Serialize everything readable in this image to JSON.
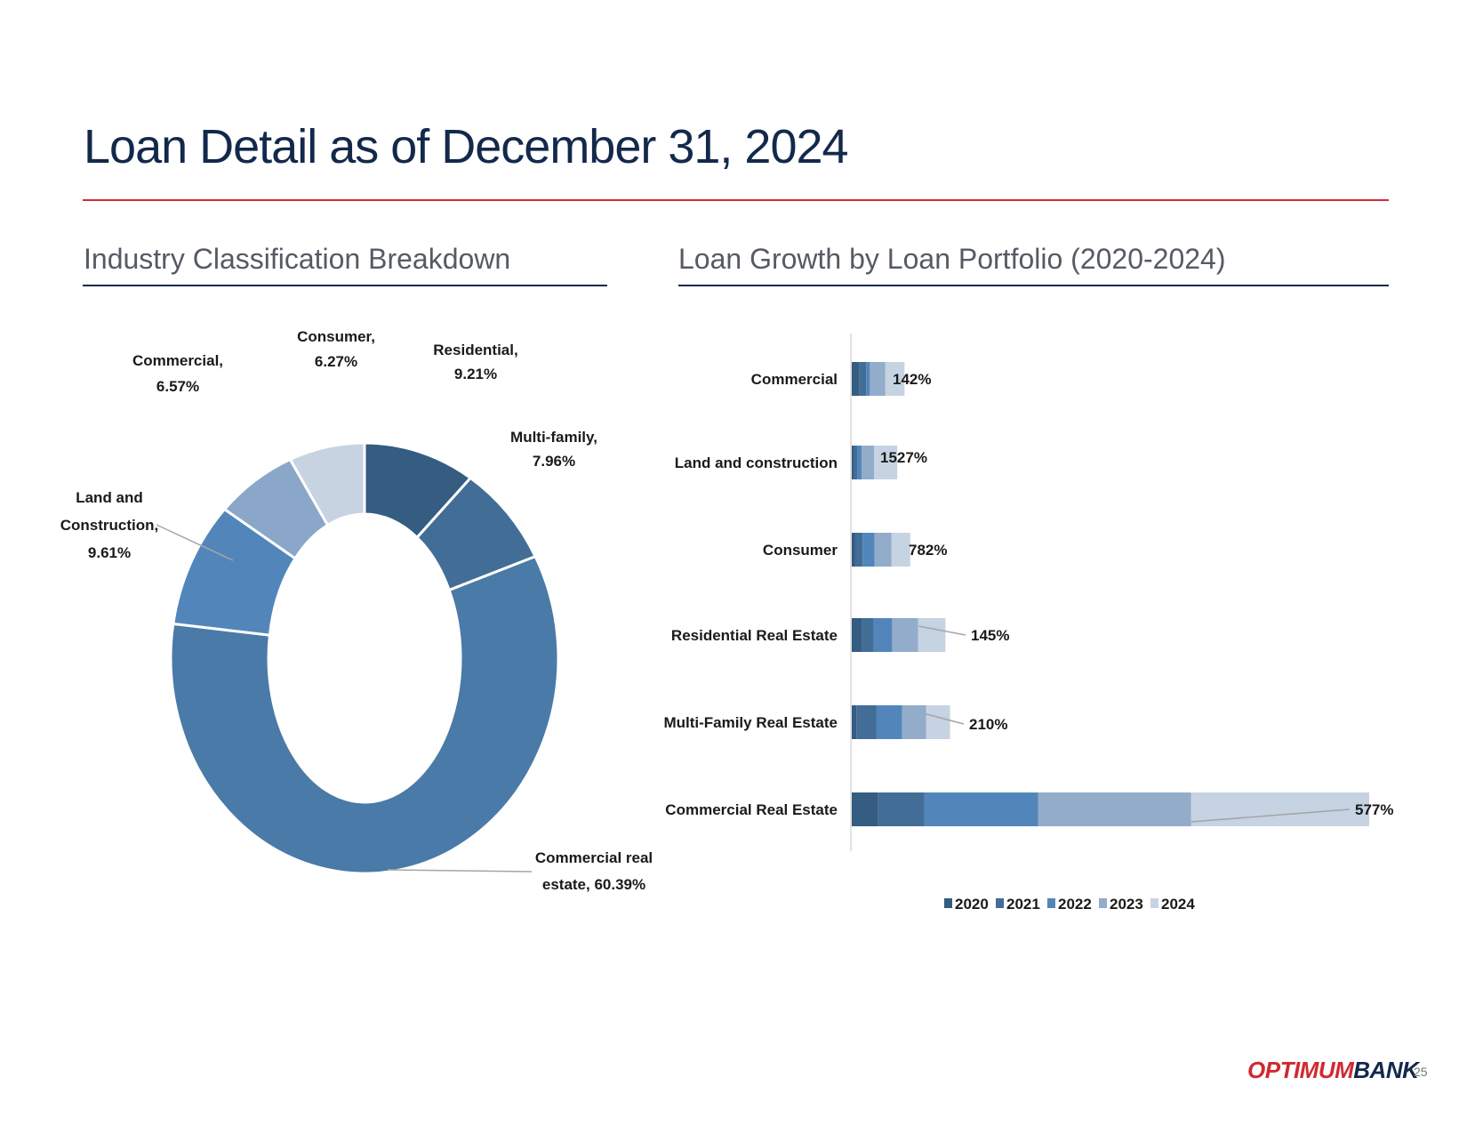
{
  "page": {
    "title": "Loan Detail as of December 31, 2024",
    "page_number": "25",
    "logo": {
      "part1": "OPTIMUM",
      "part2": "BANK",
      "colors": {
        "part1": "#cf2a32",
        "part2": "#13294b"
      }
    },
    "accent_colors": {
      "title_rule": "#d52b36",
      "section_rule": "#13294b",
      "title_text": "#13294b"
    }
  },
  "sections": {
    "left_title": "Industry Classification Breakdown",
    "right_title": "Loan Growth by Loan Portfolio (2020-2024)"
  },
  "chart_data": [
    {
      "type": "pie",
      "donut": true,
      "title": "Industry Classification Breakdown",
      "slices": [
        {
          "name": "Residential",
          "value": 9.21,
          "label_lines": [
            "Residential,",
            "9.21%"
          ],
          "color": "#355c81"
        },
        {
          "name": "Multi-family",
          "value": 7.96,
          "label_lines": [
            "Multi-family,",
            "7.96%"
          ],
          "color": "#426d97"
        },
        {
          "name": "Commercial real estate",
          "value": 60.39,
          "label_lines": [
            "Commercial real",
            "estate, 60.39%"
          ],
          "color": "#4a7aa7"
        },
        {
          "name": "Land and Construction",
          "value": 9.61,
          "label_lines": [
            "Land and",
            "Construction,",
            "9.61%"
          ],
          "color": "#5286bb"
        },
        {
          "name": "Commercial",
          "value": 6.57,
          "label_lines": [
            "Commercial,",
            "6.57%"
          ],
          "color": "#8aa7c9"
        },
        {
          "name": "Consumer",
          "value": 6.27,
          "label_lines": [
            "Consumer,",
            "6.27%"
          ],
          "color": "#c7d3e1"
        }
      ]
    },
    {
      "type": "bar",
      "orientation": "horizontal",
      "stacked": true,
      "title": "Loan Growth by Loan Portfolio (2020-2024)",
      "xlim": [
        0,
        100
      ],
      "grid": false,
      "legend": "bottom",
      "categories": [
        "Commercial",
        "Land and construction",
        "Consumer",
        "Residential Real Estate",
        "Multi-Family Real Estate",
        "Commercial Real Estate"
      ],
      "growth_labels": [
        "142%",
        "1527%",
        "782%",
        "145%",
        "210%",
        "577%"
      ],
      "series": [
        {
          "name": "2020",
          "color": "#355c81",
          "values": [
            1.5,
            0.5,
            0.6,
            2.0,
            0.9,
            5.0
          ]
        },
        {
          "name": "2021",
          "color": "#426d97",
          "values": [
            1.3,
            0.6,
            1.5,
            2.2,
            3.9,
            9.0
          ]
        },
        {
          "name": "2022",
          "color": "#5286bb",
          "values": [
            0.7,
            0.8,
            2.3,
            3.6,
            4.9,
            22.0
          ]
        },
        {
          "name": "2023",
          "color": "#92acca",
          "values": [
            3.0,
            2.4,
            3.3,
            5.0,
            4.7,
            29.6
          ]
        },
        {
          "name": "2024",
          "color": "#c6d3e2",
          "values": [
            3.7,
            4.5,
            3.6,
            5.3,
            4.6,
            34.4
          ]
        }
      ]
    }
  ]
}
